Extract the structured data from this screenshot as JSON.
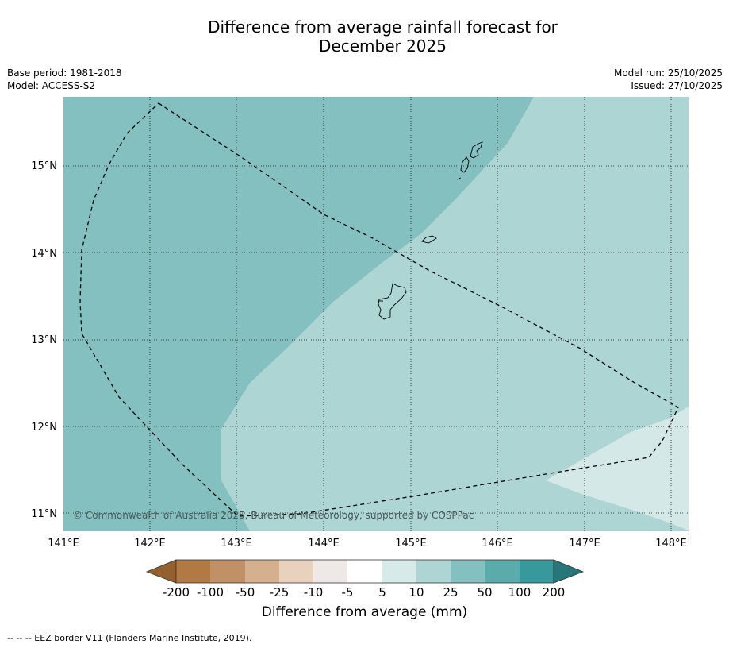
{
  "title": {
    "line1": "Difference from average rainfall forecast for",
    "line2": "December 2025"
  },
  "meta": {
    "base_period": "Base period: 1981-2018",
    "model": "Model: ACCESS-S2",
    "model_run": "Model run: 25/10/2025",
    "issued": "Issued: 27/10/2025"
  },
  "map": {
    "lon_labels": [
      "141°E",
      "142°E",
      "143°E",
      "144°E",
      "145°E",
      "146°E",
      "147°E",
      "148°E"
    ],
    "lat_labels": [
      "15°N",
      "14°N",
      "13°N",
      "12°N",
      "11°N"
    ],
    "copyright": "© Commonwealth of Australia 2025, Bureau of Meteorology, supported by COSPPac",
    "region_colors": {
      "class_25_50": "#84c0bf",
      "class_10_25": "#acd5d4",
      "class_5_10": "#d3e8e7"
    }
  },
  "colorbar": {
    "ticks": [
      "-200",
      "-100",
      "-50",
      "-25",
      "-10",
      "-5",
      "5",
      "10",
      "25",
      "50",
      "100",
      "200"
    ],
    "colors": [
      "#94612e",
      "#b07a42",
      "#c09066",
      "#d4b08e",
      "#e8d1bd",
      "#eee9e6",
      "#ffffff",
      "#d5eae9",
      "#acd5d4",
      "#84c0bf",
      "#59acaa",
      "#36999b",
      "#26777a"
    ],
    "title": "Difference from average (mm)"
  },
  "footer": {
    "legend": "--  --  -- EEZ border V11 (Flanders Marine Institute, 2019)."
  }
}
